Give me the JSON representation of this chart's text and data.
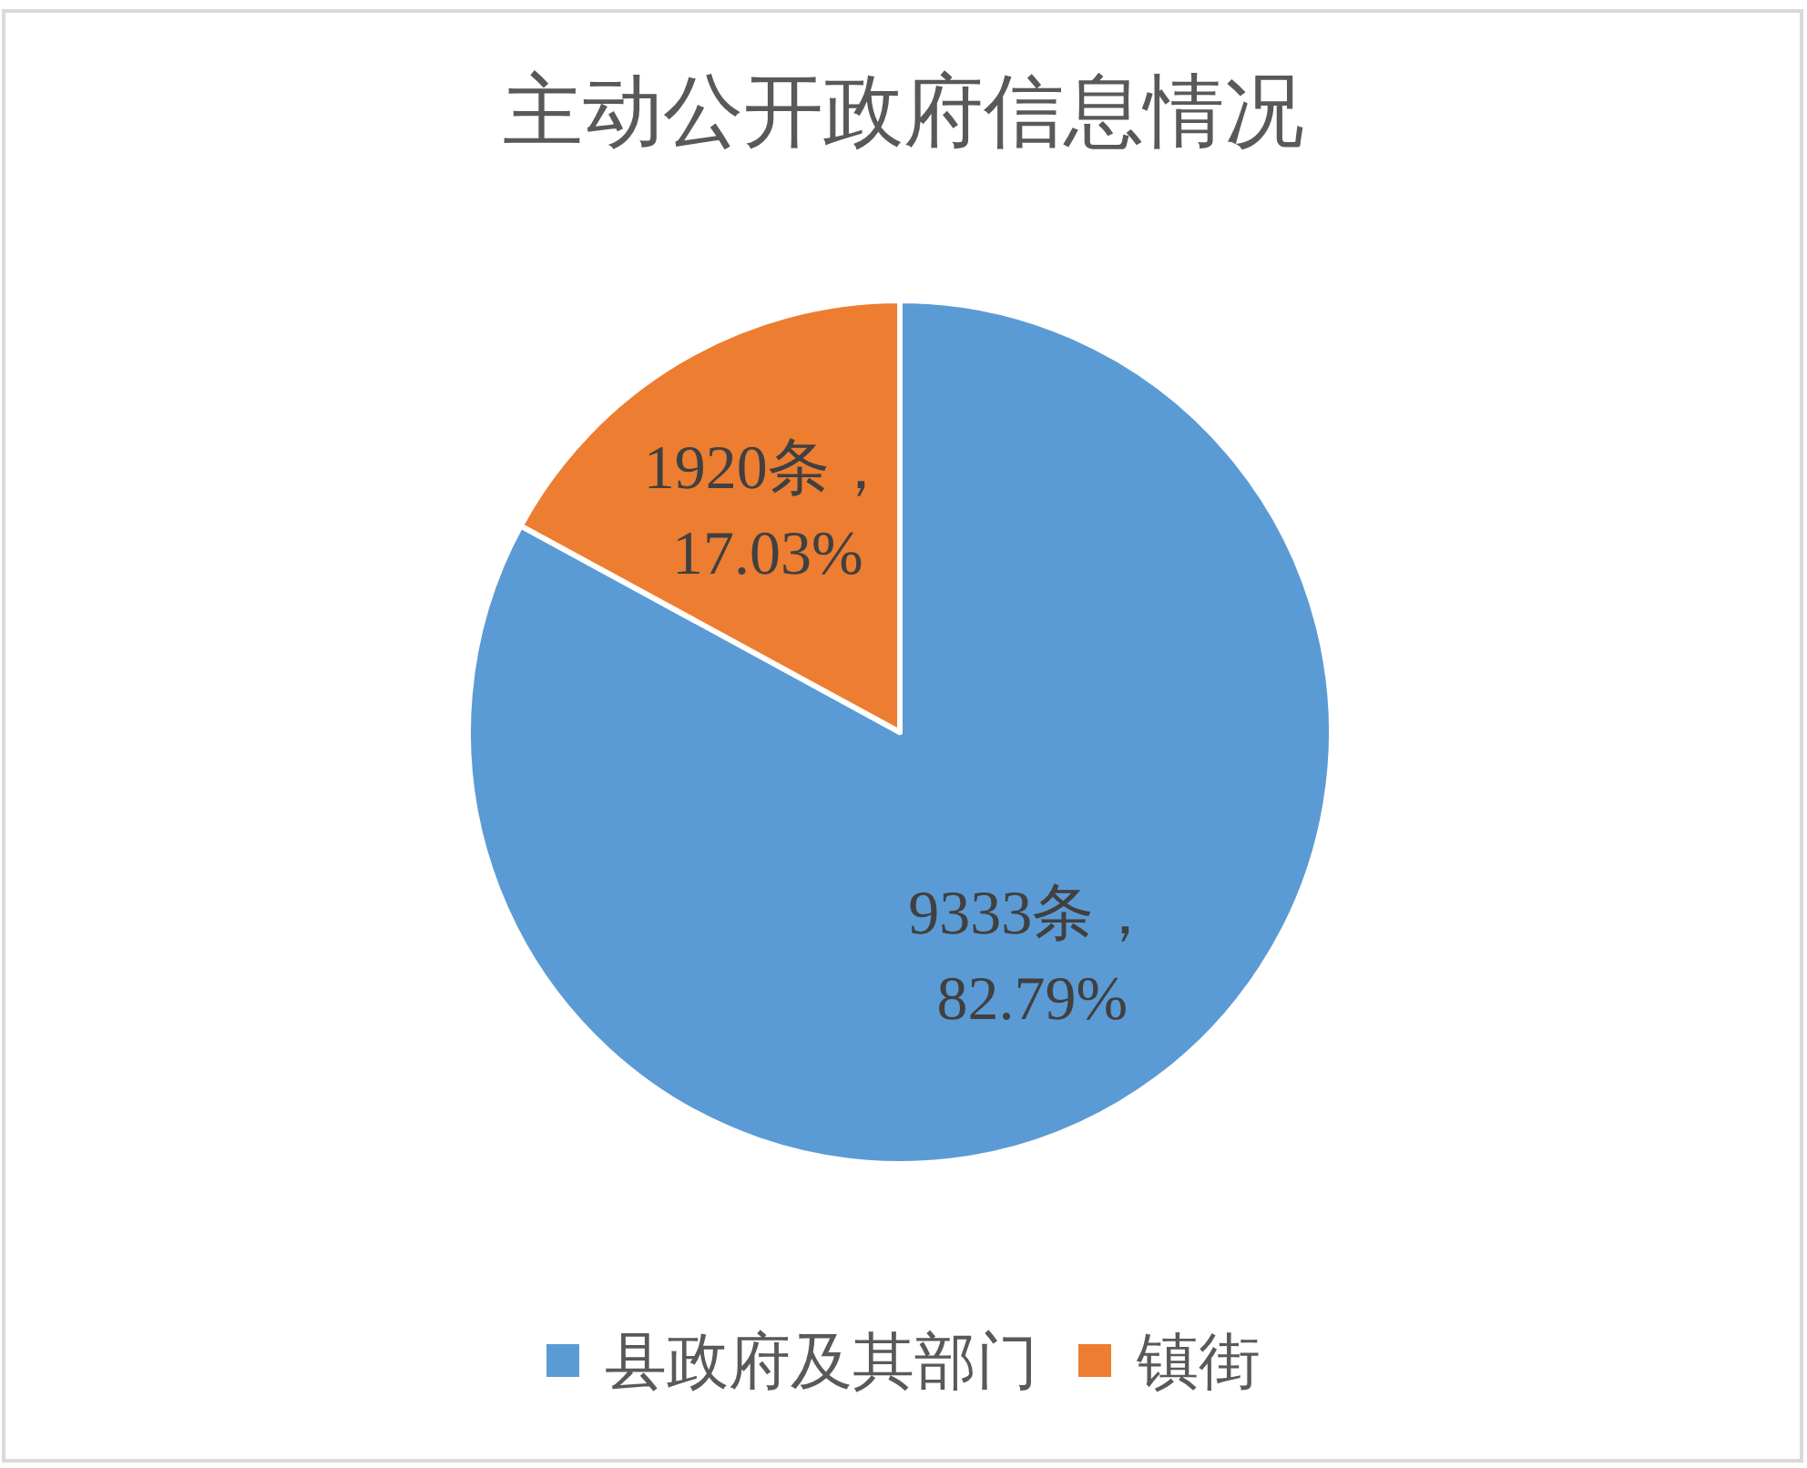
{
  "chart_data": {
    "type": "pie",
    "title": "主动公开政府信息情况",
    "categories": [
      "县政府及其部门",
      "镇街"
    ],
    "values": [
      9333,
      1920
    ],
    "colors": [
      "#5b9bd5",
      "#ed7d31"
    ],
    "value_labels": [
      "9333条，\n82.79%",
      "1920条，\n17.03%"
    ],
    "legend": "bottom"
  }
}
